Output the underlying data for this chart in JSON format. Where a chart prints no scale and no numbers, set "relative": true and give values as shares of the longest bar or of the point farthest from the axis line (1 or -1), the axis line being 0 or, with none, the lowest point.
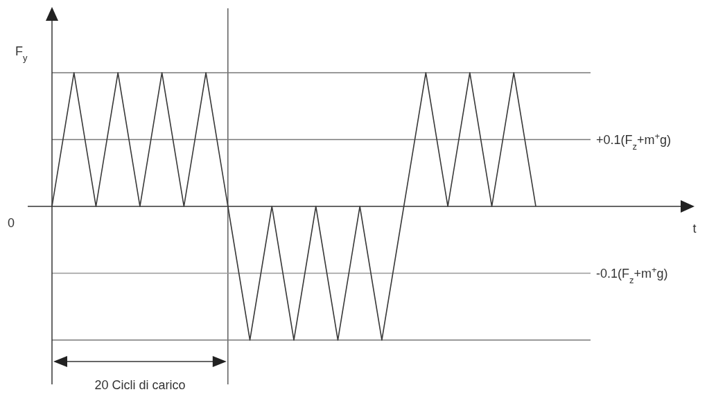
{
  "chart_data": {
    "type": "line",
    "relative": true,
    "ylabel": "F$_{y}$",
    "categories": [
      null,
      null,
      null,
      null,
      null,
      null,
      null,
      null,
      null,
      null,
      null,
      null,
      null,
      null,
      null,
      null,
      null,
      null,
      null,
      null,
      null,
      null,
      null
    ],
    "series": [
      {
        "color": "#3a3a3a",
        "values": [
          0,
          1,
          0,
          1,
          0,
          1,
          0,
          1,
          0,
          -1,
          0,
          -1,
          0,
          -1,
          0,
          -1,
          0,
          1,
          0,
          1,
          0,
          1,
          0
        ]
      }
    ],
    "ref_lines": [
      {
        "axis": "y",
        "value": 1,
        "color": "#777777"
      },
      {
        "axis": "y",
        "value": 0.5,
        "label": "+0.1(F$_{z}$+m$^{+}$g)",
        "color": "#777777"
      },
      {
        "axis": "y",
        "value": -0.5,
        "label": "-0.1(F$_{z}$+m$^{+}$g)",
        "color": "#999999"
      },
      {
        "axis": "y",
        "value": -1,
        "color": "#777777"
      }
    ],
    "annotations": [
      "0",
      "t",
      "20 Cicli di carico"
    ],
    "line_style": "solid"
  }
}
